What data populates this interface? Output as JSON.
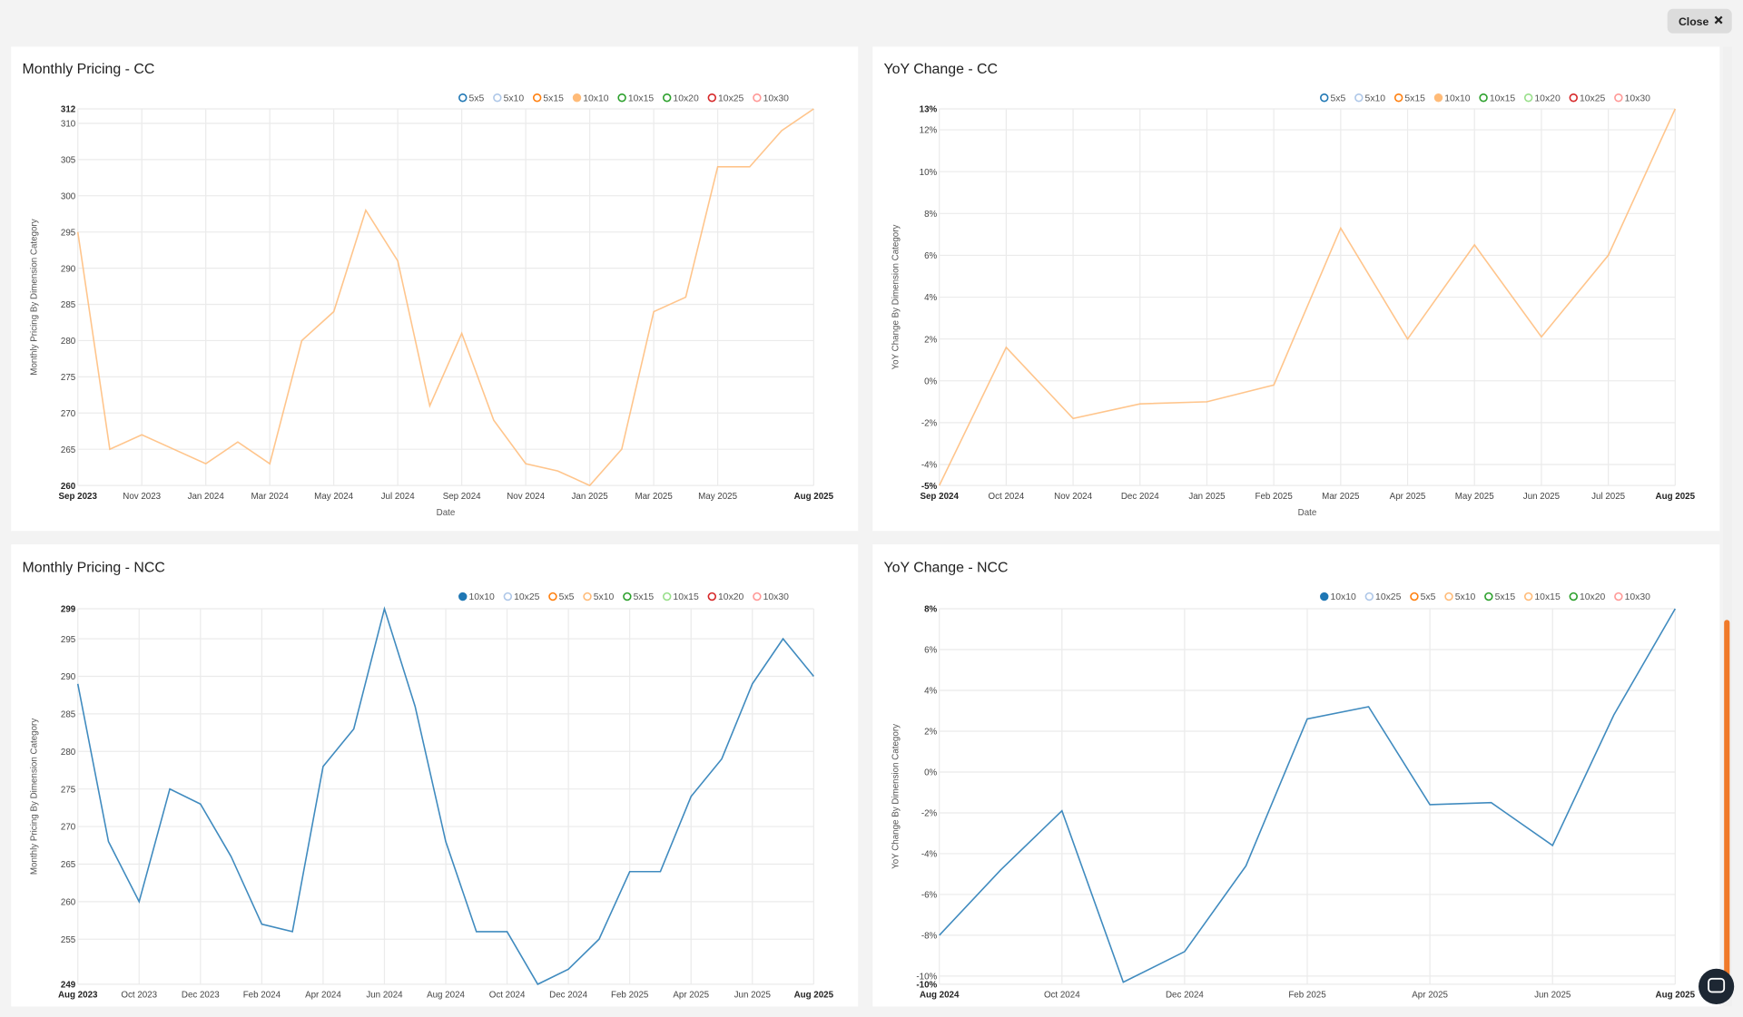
{
  "close_button": "Close",
  "chart_data": [
    {
      "type": "line",
      "title": "Monthly Pricing - CC",
      "x_label": "Date",
      "y_label": "Monthly Pricing By Dimension Category",
      "categories": [
        "Sep 2023",
        null,
        "Nov 2023",
        null,
        "Jan 2024",
        null,
        "Mar 2024",
        null,
        "May 2024",
        null,
        "Jul 2024",
        null,
        "Sep 2024",
        null,
        "Nov 2024",
        null,
        "Jan 2025",
        null,
        "Mar 2025",
        null,
        "May 2025",
        null,
        null,
        "Aug 2025"
      ],
      "series": [
        {
          "name": "5x5",
          "color": "#1f77b4",
          "hidden": true
        },
        {
          "name": "5x10",
          "color": "#aec7e8",
          "hidden": true
        },
        {
          "name": "5x15",
          "color": "#ff7f0e",
          "hidden": true
        },
        {
          "name": "10x10",
          "color": "#ffbb78",
          "values": [
            295,
            265,
            267,
            265,
            263,
            266,
            263,
            280,
            284,
            298,
            291,
            271,
            281,
            269,
            263,
            262,
            260,
            265,
            284,
            286,
            304,
            304,
            309,
            312
          ]
        },
        {
          "name": "10x15",
          "color": "#2ca02c",
          "hidden": true
        },
        {
          "name": "10x20",
          "color": "#2ca02c",
          "hidden": true
        },
        {
          "name": "10x25",
          "color": "#d62728",
          "hidden": true
        },
        {
          "name": "10x30",
          "color": "#ff9896",
          "hidden": true
        }
      ],
      "ylim": [
        260,
        312
      ],
      "yticks": [
        260,
        265,
        270,
        275,
        280,
        285,
        290,
        295,
        300,
        305,
        310,
        312
      ],
      "grid": true
    },
    {
      "type": "line",
      "title": "YoY Change - CC",
      "x_label": "Date",
      "y_label": "YoY Change By Dimension Category",
      "categories": [
        "Sep 2024",
        "Oct 2024",
        "Nov 2024",
        "Dec 2024",
        "Jan 2025",
        "Feb 2025",
        "Mar 2025",
        "Apr 2025",
        "May 2025",
        "Jun 2025",
        "Jul 2025",
        "Aug 2025"
      ],
      "series": [
        {
          "name": "5x5",
          "color": "#1f77b4",
          "hidden": true
        },
        {
          "name": "5x10",
          "color": "#aec7e8",
          "hidden": true
        },
        {
          "name": "5x15",
          "color": "#ff7f0e",
          "hidden": true
        },
        {
          "name": "10x10",
          "color": "#ffbb78",
          "values": [
            -5,
            1.6,
            -1.8,
            -1.1,
            -1.0,
            -0.2,
            7.3,
            2.0,
            6.5,
            2.1,
            6.0,
            13
          ]
        },
        {
          "name": "10x15",
          "color": "#2ca02c",
          "hidden": true
        },
        {
          "name": "10x20",
          "color": "#98df8a",
          "hidden": true
        },
        {
          "name": "10x25",
          "color": "#d62728",
          "hidden": true
        },
        {
          "name": "10x30",
          "color": "#ff9896",
          "hidden": true
        }
      ],
      "ylim": [
        -5,
        13
      ],
      "yticks": [
        {
          "value": -5,
          "label": "-5%"
        },
        {
          "value": -4,
          "label": "-4%"
        },
        {
          "value": -2,
          "label": "-2%"
        },
        {
          "value": 0,
          "label": "0%"
        },
        {
          "value": 2,
          "label": "2%"
        },
        {
          "value": 4,
          "label": "4%"
        },
        {
          "value": 6,
          "label": "6%"
        },
        {
          "value": 8,
          "label": "8%"
        },
        {
          "value": 10,
          "label": "10%"
        },
        {
          "value": 12,
          "label": "12%"
        },
        {
          "value": 13,
          "label": "13%"
        }
      ],
      "grid": true
    },
    {
      "type": "line",
      "title": "Monthly Pricing - NCC",
      "y_label": "Monthly Pricing By Dimension Category",
      "categories": [
        "Aug 2023",
        null,
        "Oct 2023",
        null,
        "Dec 2023",
        null,
        "Feb 2024",
        null,
        "Apr 2024",
        null,
        "Jun 2024",
        null,
        "Aug 2024",
        null,
        "Oct 2024",
        null,
        "Dec 2024",
        null,
        "Feb 2025",
        null,
        "Apr 2025",
        null,
        "Jun 2025",
        null,
        "Aug 2025"
      ],
      "series": [
        {
          "name": "10x10",
          "color": "#1f77b4",
          "values": [
            289,
            268,
            260,
            275,
            273,
            266,
            257,
            256,
            278,
            283,
            299,
            286,
            268,
            256,
            256,
            249,
            251,
            255,
            264,
            264,
            274,
            279,
            289,
            295,
            290
          ]
        },
        {
          "name": "10x25",
          "color": "#aec7e8",
          "hidden": true
        },
        {
          "name": "5x5",
          "color": "#ff7f0e",
          "hidden": true
        },
        {
          "name": "5x10",
          "color": "#ffbb78",
          "hidden": true
        },
        {
          "name": "5x15",
          "color": "#2ca02c",
          "hidden": true
        },
        {
          "name": "10x15",
          "color": "#98df8a",
          "hidden": true
        },
        {
          "name": "10x20",
          "color": "#d62728",
          "hidden": true
        },
        {
          "name": "10x30",
          "color": "#ff9896",
          "hidden": true
        }
      ],
      "ylim": [
        249,
        299
      ],
      "yticks": [
        249,
        255,
        260,
        265,
        270,
        275,
        280,
        285,
        290,
        295,
        299
      ],
      "grid": true
    },
    {
      "type": "line",
      "title": "YoY Change - NCC",
      "y_label": "YoY Change By Dimension Category",
      "categories": [
        "Aug 2024",
        null,
        "Oct 2024",
        null,
        "Dec 2024",
        null,
        "Feb 2025",
        null,
        "Apr 2025",
        null,
        "Jun 2025",
        null,
        "Aug 2025"
      ],
      "series": [
        {
          "name": "10x10",
          "color": "#1f77b4",
          "values": [
            -8.0,
            -4.8,
            -1.9,
            -10.3,
            -8.8,
            -4.6,
            2.6,
            3.2,
            -1.6,
            -1.5,
            -3.6,
            2.8,
            8
          ]
        },
        {
          "name": "10x25",
          "color": "#aec7e8",
          "hidden": true
        },
        {
          "name": "5x5",
          "color": "#ff7f0e",
          "hidden": true
        },
        {
          "name": "5x10",
          "color": "#ffbb78",
          "hidden": true
        },
        {
          "name": "5x15",
          "color": "#2ca02c",
          "hidden": true
        },
        {
          "name": "10x15",
          "color": "#ffbb78",
          "hidden": true
        },
        {
          "name": "10x20",
          "color": "#2ca02c",
          "hidden": true
        },
        {
          "name": "10x30",
          "color": "#ff9896",
          "hidden": true
        }
      ],
      "ylim": [
        -10.4,
        8
      ],
      "yticks": [
        {
          "value": -10.4,
          "label": "-10%"
        },
        {
          "value": -10,
          "label": "-10%"
        },
        {
          "value": -8,
          "label": "-8%"
        },
        {
          "value": -6,
          "label": "-6%"
        },
        {
          "value": -4,
          "label": "-4%"
        },
        {
          "value": -2,
          "label": "-2%"
        },
        {
          "value": 0,
          "label": "0%"
        },
        {
          "value": 2,
          "label": "2%"
        },
        {
          "value": 4,
          "label": "4%"
        },
        {
          "value": 6,
          "label": "6%"
        },
        {
          "value": 8,
          "label": "8%"
        }
      ],
      "grid": true
    }
  ]
}
